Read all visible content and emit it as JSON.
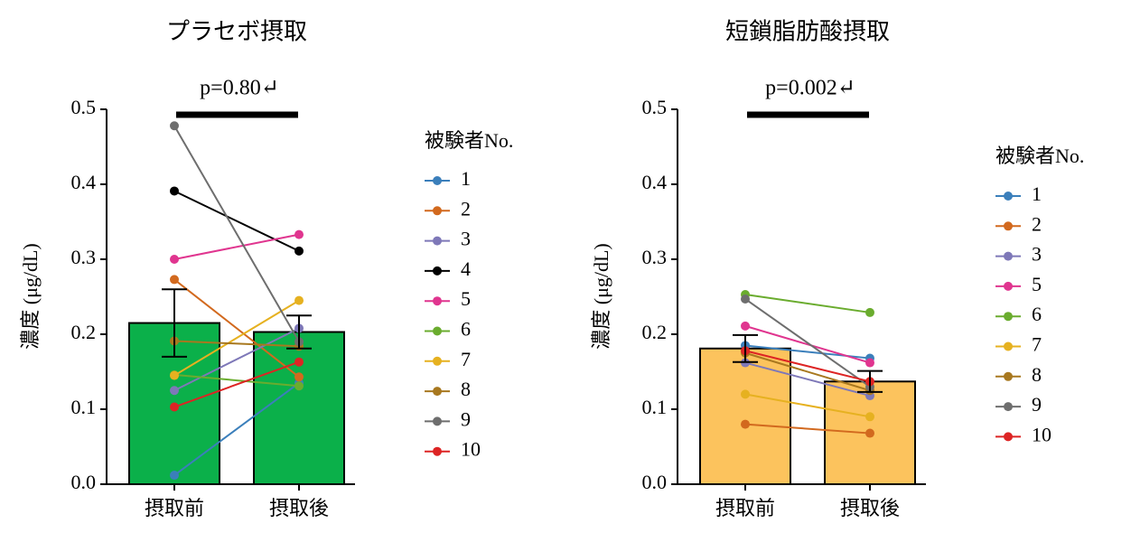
{
  "chart_data": [
    {
      "type": "bar",
      "title": "プラセボ摂取",
      "ylabel": "濃度 (μg/dL)",
      "annotation": "p=0.80↵",
      "categories": [
        "摂取前",
        "摂取後"
      ],
      "values": [
        0.215,
        0.203
      ],
      "errors": [
        0.045,
        0.022
      ],
      "color": "#0bb04a",
      "ylim": [
        0,
        0.5
      ],
      "yticks": [
        {
          "value": 0,
          "label": "0.0"
        },
        0.1,
        0.2,
        0.3,
        0.4,
        0.5
      ],
      "legend_title": "被験者No.",
      "series": [
        {
          "name": "1",
          "color": "#3b7fbb",
          "values": [
            0.012,
            0.135
          ]
        },
        {
          "name": "2",
          "color": "#d2691e",
          "values": [
            0.273,
            0.143
          ]
        },
        {
          "name": "3",
          "color": "#7e78b8",
          "values": [
            0.125,
            0.208
          ]
        },
        {
          "name": "4",
          "color": "#000000",
          "values": [
            0.391,
            0.311
          ]
        },
        {
          "name": "5",
          "color": "#e0358f",
          "values": [
            0.3,
            0.333
          ]
        },
        {
          "name": "6",
          "color": "#6aac2e",
          "values": [
            0.146,
            0.131
          ]
        },
        {
          "name": "7",
          "color": "#e6b120",
          "values": [
            0.145,
            0.245
          ]
        },
        {
          "name": "8",
          "color": "#a8781f",
          "values": [
            0.191,
            0.184
          ]
        },
        {
          "name": "9",
          "color": "#6e6e6e",
          "values": [
            0.478,
            0.19
          ]
        },
        {
          "name": "10",
          "color": "#dd2424",
          "values": [
            0.103,
            0.163
          ]
        }
      ]
    },
    {
      "type": "bar",
      "title": "短鎖脂肪酸摂取",
      "ylabel": "濃度 (μg/dL)",
      "annotation": "p=0.002↵",
      "categories": [
        "摂取前",
        "摂取後"
      ],
      "values": [
        0.181,
        0.137
      ],
      "errors": [
        0.018,
        0.014
      ],
      "color": "#fcc35d",
      "ylim": [
        0,
        0.5
      ],
      "yticks": [
        {
          "value": 0,
          "label": "0.0"
        },
        0.1,
        0.2,
        0.3,
        0.4,
        0.5
      ],
      "legend_title": "被験者No.",
      "series": [
        {
          "name": "1",
          "color": "#3b7fbb",
          "values": [
            0.185,
            0.168
          ]
        },
        {
          "name": "2",
          "color": "#d2691e",
          "values": [
            0.08,
            0.068
          ]
        },
        {
          "name": "3",
          "color": "#7e78b8",
          "values": [
            0.162,
            0.118
          ]
        },
        {
          "name": "5",
          "color": "#e0358f",
          "values": [
            0.211,
            0.162
          ]
        },
        {
          "name": "6",
          "color": "#6aac2e",
          "values": [
            0.253,
            0.229
          ]
        },
        {
          "name": "7",
          "color": "#e6b120",
          "values": [
            0.12,
            0.09
          ]
        },
        {
          "name": "8",
          "color": "#a8781f",
          "values": [
            0.175,
            0.125
          ]
        },
        {
          "name": "9",
          "color": "#6e6e6e",
          "values": [
            0.247,
            0.13
          ]
        },
        {
          "name": "10",
          "color": "#dd2424",
          "values": [
            0.178,
            0.137
          ]
        }
      ]
    }
  ]
}
